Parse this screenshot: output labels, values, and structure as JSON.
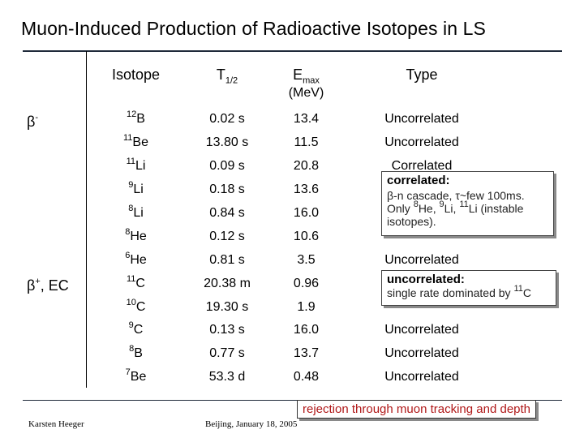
{
  "title": "Muon-Induced Production of Radioactive Isotopes in LS",
  "headers": {
    "isotope": "Isotope",
    "t": "T",
    "t_sub": "1/2",
    "e": "E",
    "e_sub": "max",
    "e_unit": "(MeV)",
    "type": "Type"
  },
  "groups": {
    "beta_minus": "β",
    "beta_minus_sup": "-",
    "beta_plus": "β",
    "beta_plus_sup": "+",
    "beta_plus_rest": ", EC"
  },
  "rows": [
    {
      "mass": "12",
      "el": "B",
      "t": "0.02 s",
      "e": "13.4",
      "type": "Uncorrelated"
    },
    {
      "mass": "11",
      "el": "Be",
      "t": "13.80 s",
      "e": "11.5",
      "type": "Uncorrelated"
    },
    {
      "mass": "11",
      "el": "Li",
      "t": "0.09 s",
      "e": "20.8",
      "type": "Correlated"
    },
    {
      "mass": "9",
      "el": "Li",
      "t": "0.18 s",
      "e": "13.6",
      "type": ""
    },
    {
      "mass": "8",
      "el": "Li",
      "t": "0.84 s",
      "e": "16.0",
      "type": ""
    },
    {
      "mass": "8",
      "el": "He",
      "t": "0.12 s",
      "e": "10.6",
      "type": ""
    },
    {
      "mass": "6",
      "el": "He",
      "t": "0.81 s",
      "e": "3.5",
      "type": "Uncorrelated"
    },
    {
      "mass": "11",
      "el": "C",
      "t": "20.38 m",
      "e": "0.96",
      "type": ""
    },
    {
      "mass": "10",
      "el": "C",
      "t": "19.30 s",
      "e": "1.9",
      "type": ""
    },
    {
      "mass": "9",
      "el": "C",
      "t": "0.13 s",
      "e": "16.0",
      "type": "Uncorrelated"
    },
    {
      "mass": "8",
      "el": "B",
      "t": "0.77 s",
      "e": "13.7",
      "type": "Uncorrelated"
    },
    {
      "mass": "7",
      "el": "Be",
      "t": "53.3 d",
      "e": "0.48",
      "type": "Uncorrelated"
    }
  ],
  "tip_correlated": {
    "heading": "correlated:",
    "line1": "β-n cascade, τ~few 100ms.",
    "line2a": "Only ",
    "m1": "8",
    "t2": "He, ",
    "m2": "9",
    "t3": "Li, ",
    "m3": "11",
    "t4": "Li (instable",
    "line3": "isotopes)."
  },
  "tip_uncorrelated": {
    "heading": "uncorrelated:",
    "line1a": "single rate dominated by ",
    "m": "11",
    "el": "C"
  },
  "rejection": "rejection through muon tracking and depth",
  "footer_left": "Karsten Heeger",
  "footer_mid": "Beijing, January 18, 2005"
}
